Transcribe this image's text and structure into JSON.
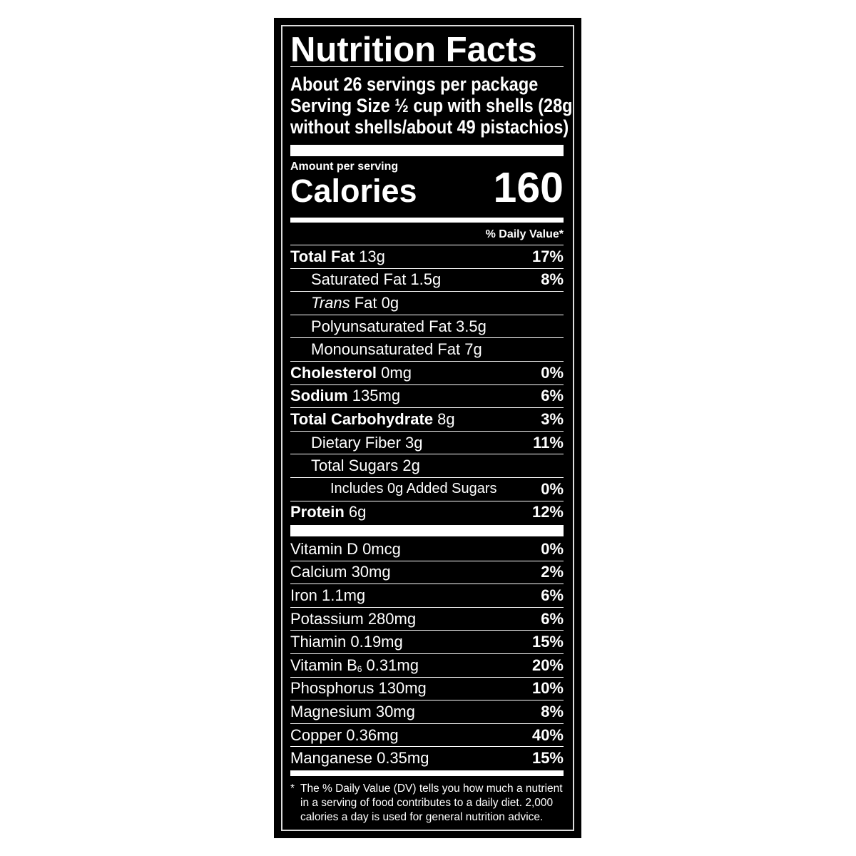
{
  "title": "Nutrition Facts",
  "servings": [
    "About 26 servings per package",
    "Serving Size ½ cup with shells (28g",
    "without shells/about 49 pistachios)"
  ],
  "amount_per_serving": "Amount per serving",
  "calories_label": "Calories",
  "calories_value": "160",
  "daily_value_header": "% Daily Value*",
  "nutrients": [
    {
      "bold": "Total Fat",
      "italic": "",
      "rest": " 13g",
      "dv": "17%",
      "indent": 0
    },
    {
      "bold": "",
      "italic": "",
      "rest": "Saturated Fat 1.5g",
      "dv": "8%",
      "indent": 1
    },
    {
      "bold": "",
      "italic": "Trans",
      "rest": " Fat 0g",
      "dv": "",
      "indent": 1
    },
    {
      "bold": "",
      "italic": "",
      "rest": "Polyunsaturated Fat 3.5g",
      "dv": "",
      "indent": 1
    },
    {
      "bold": "",
      "italic": "",
      "rest": "Monounsaturated Fat 7g",
      "dv": "",
      "indent": 1
    },
    {
      "bold": "Cholesterol",
      "italic": "",
      "rest": " 0mg",
      "dv": "0%",
      "indent": 0
    },
    {
      "bold": "Sodium",
      "italic": "",
      "rest": " 135mg",
      "dv": "6%",
      "indent": 0
    },
    {
      "bold": "Total Carbohydrate",
      "italic": "",
      "rest": " 8g",
      "dv": "3%",
      "indent": 0
    },
    {
      "bold": "",
      "italic": "",
      "rest": "Dietary Fiber 3g",
      "dv": "11%",
      "indent": 1
    },
    {
      "bold": "",
      "italic": "",
      "rest": "Total Sugars 2g",
      "dv": "",
      "indent": 1
    },
    {
      "bold": "",
      "italic": "",
      "rest": "Includes 0g Added Sugars",
      "dv": "0%",
      "indent": 2
    },
    {
      "bold": "Protein",
      "italic": "",
      "rest": " 6g",
      "dv": "12%",
      "indent": 0
    }
  ],
  "vitamins": [
    {
      "name": "Vitamin D 0mcg",
      "sub": "",
      "after": "",
      "dv": "0%"
    },
    {
      "name": "Calcium 30mg",
      "sub": "",
      "after": "",
      "dv": "2%"
    },
    {
      "name": "Iron 1.1mg",
      "sub": "",
      "after": "",
      "dv": "6%"
    },
    {
      "name": "Potassium 280mg",
      "sub": "",
      "after": "",
      "dv": "6%"
    },
    {
      "name": "Thiamin 0.19mg",
      "sub": "",
      "after": "",
      "dv": "15%"
    },
    {
      "name": "Vitamin B",
      "sub": "6",
      "after": " 0.31mg",
      "dv": "20%"
    },
    {
      "name": "Phosphorus 130mg",
      "sub": "",
      "after": "",
      "dv": "10%"
    },
    {
      "name": "Magnesium 30mg",
      "sub": "",
      "after": "",
      "dv": "8%"
    },
    {
      "name": "Copper 0.36mg",
      "sub": "",
      "after": "",
      "dv": "40%"
    },
    {
      "name": "Manganese 0.35mg",
      "sub": "",
      "after": "",
      "dv": "15%"
    }
  ],
  "footnote_marker": "*",
  "footnote": "The % Daily Value (DV) tells you how much a nutrient in a serving of food contributes to a daily diet. 2,000 calories a day is used for general nutrition advice.",
  "colors": {
    "background": "#000000",
    "text": "#ffffff"
  }
}
